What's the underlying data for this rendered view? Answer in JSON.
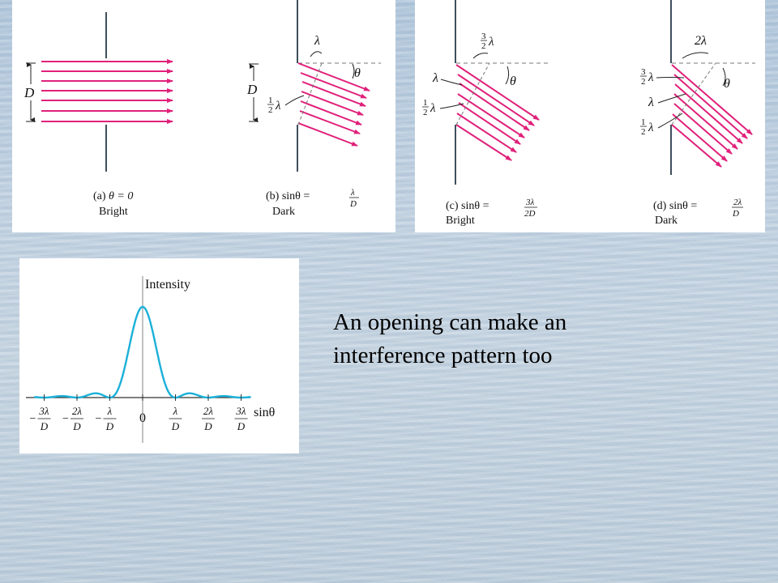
{
  "colors": {
    "ray": "#e0207a",
    "slit": "#3d4f5c",
    "curve": "#1ab0d8",
    "dashed": "#777777"
  },
  "diagrams": {
    "a": {
      "part": "(a)",
      "condition": "θ = 0",
      "result": "Bright",
      "width_label": "D"
    },
    "b": {
      "part": "(b)",
      "condition": "sinθ =",
      "frac_num": "λ",
      "frac_den": "D",
      "result": "Dark",
      "width_label": "D",
      "path_label": "λ",
      "half_num": "1",
      "half_den": "2",
      "half_sym": "λ",
      "angle_label": "θ"
    },
    "c": {
      "part": "(c)",
      "condition": "sinθ =",
      "frac_num": "3λ",
      "frac_den": "2D",
      "result": "Bright",
      "top_num": "3",
      "top_den": "2",
      "top_sym": "λ",
      "mid_label": "λ",
      "half_num": "1",
      "half_den": "2",
      "half_sym": "λ",
      "angle_label": "θ"
    },
    "d": {
      "part": "(d)",
      "condition": "sinθ =",
      "frac_num": "2λ",
      "frac_den": "D",
      "result": "Dark",
      "top_label": "2λ",
      "t32_num": "3",
      "t32_den": "2",
      "t32_sym": "λ",
      "mid_label": "λ",
      "half_num": "1",
      "half_den": "2",
      "half_sym": "λ",
      "angle_label": "θ"
    }
  },
  "graph": {
    "y_axis_label": "Intensity",
    "x_axis_label": "sinθ",
    "ticks": [
      {
        "sign": "−",
        "num": "3λ",
        "den": "D"
      },
      {
        "sign": "−",
        "num": "2λ",
        "den": "D"
      },
      {
        "sign": "−",
        "num": "λ",
        "den": "D"
      },
      {
        "sign": "",
        "num": "0",
        "den": ""
      },
      {
        "sign": "",
        "num": "λ",
        "den": "D"
      },
      {
        "sign": "",
        "num": "2λ",
        "den": "D"
      },
      {
        "sign": "",
        "num": "3λ",
        "den": "D"
      }
    ]
  },
  "caption": {
    "line1": "An opening can make an",
    "line2": "interference pattern too"
  }
}
